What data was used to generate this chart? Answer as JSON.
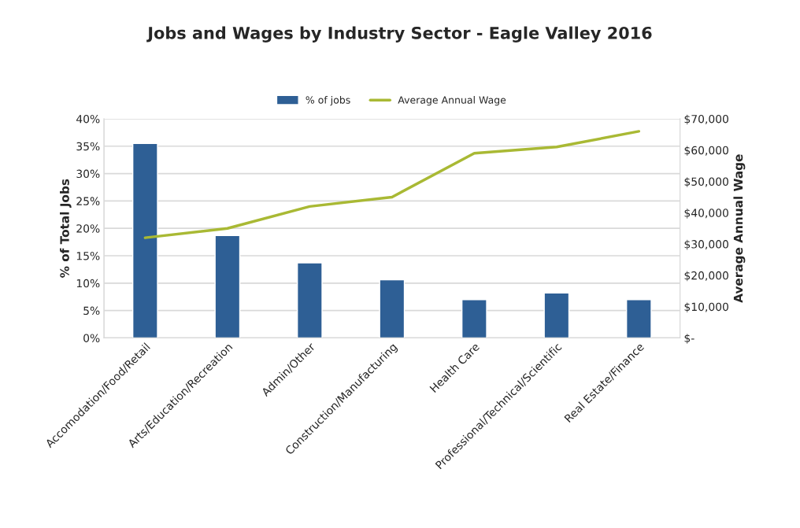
{
  "chart_data": {
    "type": "bar",
    "title": "Jobs and Wages by Industry Sector - Eagle Valley 2016",
    "ylabel": "% of Total Jobs",
    "y2label": "Average Annual Wage",
    "categories": [
      "Accomodation/Food/Retail",
      "Arts/Education/Recreation",
      "Admin/Other",
      "Construction/Manufacturing",
      "Health Care",
      "Professional/Technical/Scientific",
      "Real Estate/Finance"
    ],
    "series": [
      {
        "name": "% of jobs",
        "color": "#2e5f95",
        "values": [
          35.5,
          18.7,
          13.7,
          10.6,
          7.0,
          8.2,
          7.0
        ]
      },
      {
        "name": "Average Annual Wage",
        "type": "line",
        "axis": "y2",
        "color": "#a9b934",
        "values": [
          32000,
          35000,
          42000,
          45000,
          59000,
          61000,
          66000
        ]
      }
    ],
    "ylim": [
      0,
      40
    ],
    "yticks": [
      {
        "value": 0,
        "label": "0%"
      },
      {
        "value": 5,
        "label": "5%"
      },
      {
        "value": 10,
        "label": "10%"
      },
      {
        "value": 15,
        "label": "15%"
      },
      {
        "value": 20,
        "label": "20%"
      },
      {
        "value": 25,
        "label": "25%"
      },
      {
        "value": 30,
        "label": "30%"
      },
      {
        "value": 35,
        "label": "35%"
      },
      {
        "value": 40,
        "label": "40%"
      }
    ],
    "y2lim": [
      0,
      70000
    ],
    "y2ticks": [
      {
        "value": 0,
        "label": "$-"
      },
      {
        "value": 10000,
        "label": "$10,000"
      },
      {
        "value": 20000,
        "label": "$20,000"
      },
      {
        "value": 30000,
        "label": "$30,000"
      },
      {
        "value": 40000,
        "label": "$40,000"
      },
      {
        "value": 50000,
        "label": "$50,000"
      },
      {
        "value": 60000,
        "label": "$60,000"
      },
      {
        "value": 70000,
        "label": "$70,000"
      }
    ],
    "grid": "y",
    "legend": "top"
  }
}
